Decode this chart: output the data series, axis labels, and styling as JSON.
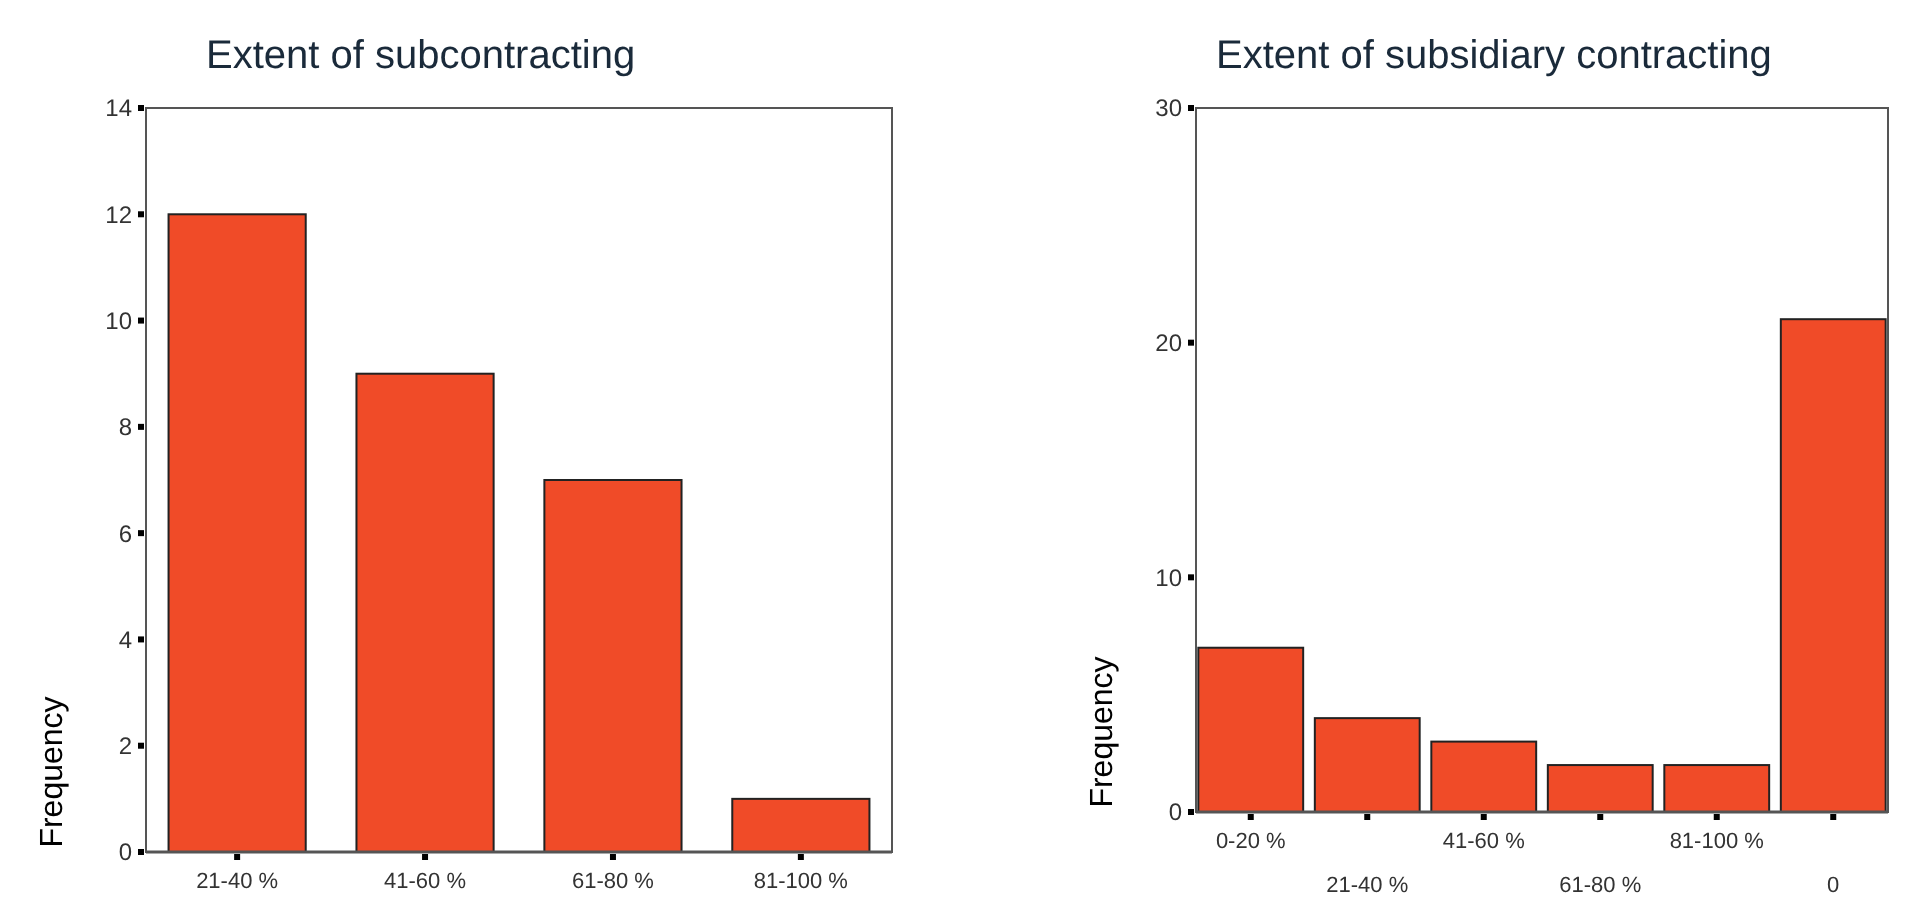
{
  "chart_data": [
    {
      "type": "bar",
      "title": "Extent of subcontracting",
      "ylabel": "Frequency",
      "categories": [
        "21-40 %",
        "41-60 %",
        "61-80 %",
        "81-100 %"
      ],
      "values": [
        12,
        9,
        7,
        1
      ],
      "color": "#f04b28",
      "ylim": [
        0,
        14
      ],
      "yticks": [
        0,
        2,
        4,
        6,
        8,
        10,
        12,
        14
      ],
      "grid": false
    },
    {
      "type": "bar",
      "title": "Extent of subsidiary contracting",
      "ylabel": "Frequency",
      "categories": [
        "0-20 %",
        "21-40 %",
        "41-60 %",
        "61-80 %",
        "81-100 %",
        "0"
      ],
      "values": [
        7,
        4,
        3,
        2,
        2,
        21
      ],
      "color": "#f04b28",
      "ylim": [
        0,
        30
      ],
      "yticks": [
        0,
        10,
        20,
        30
      ],
      "grid": false
    }
  ]
}
